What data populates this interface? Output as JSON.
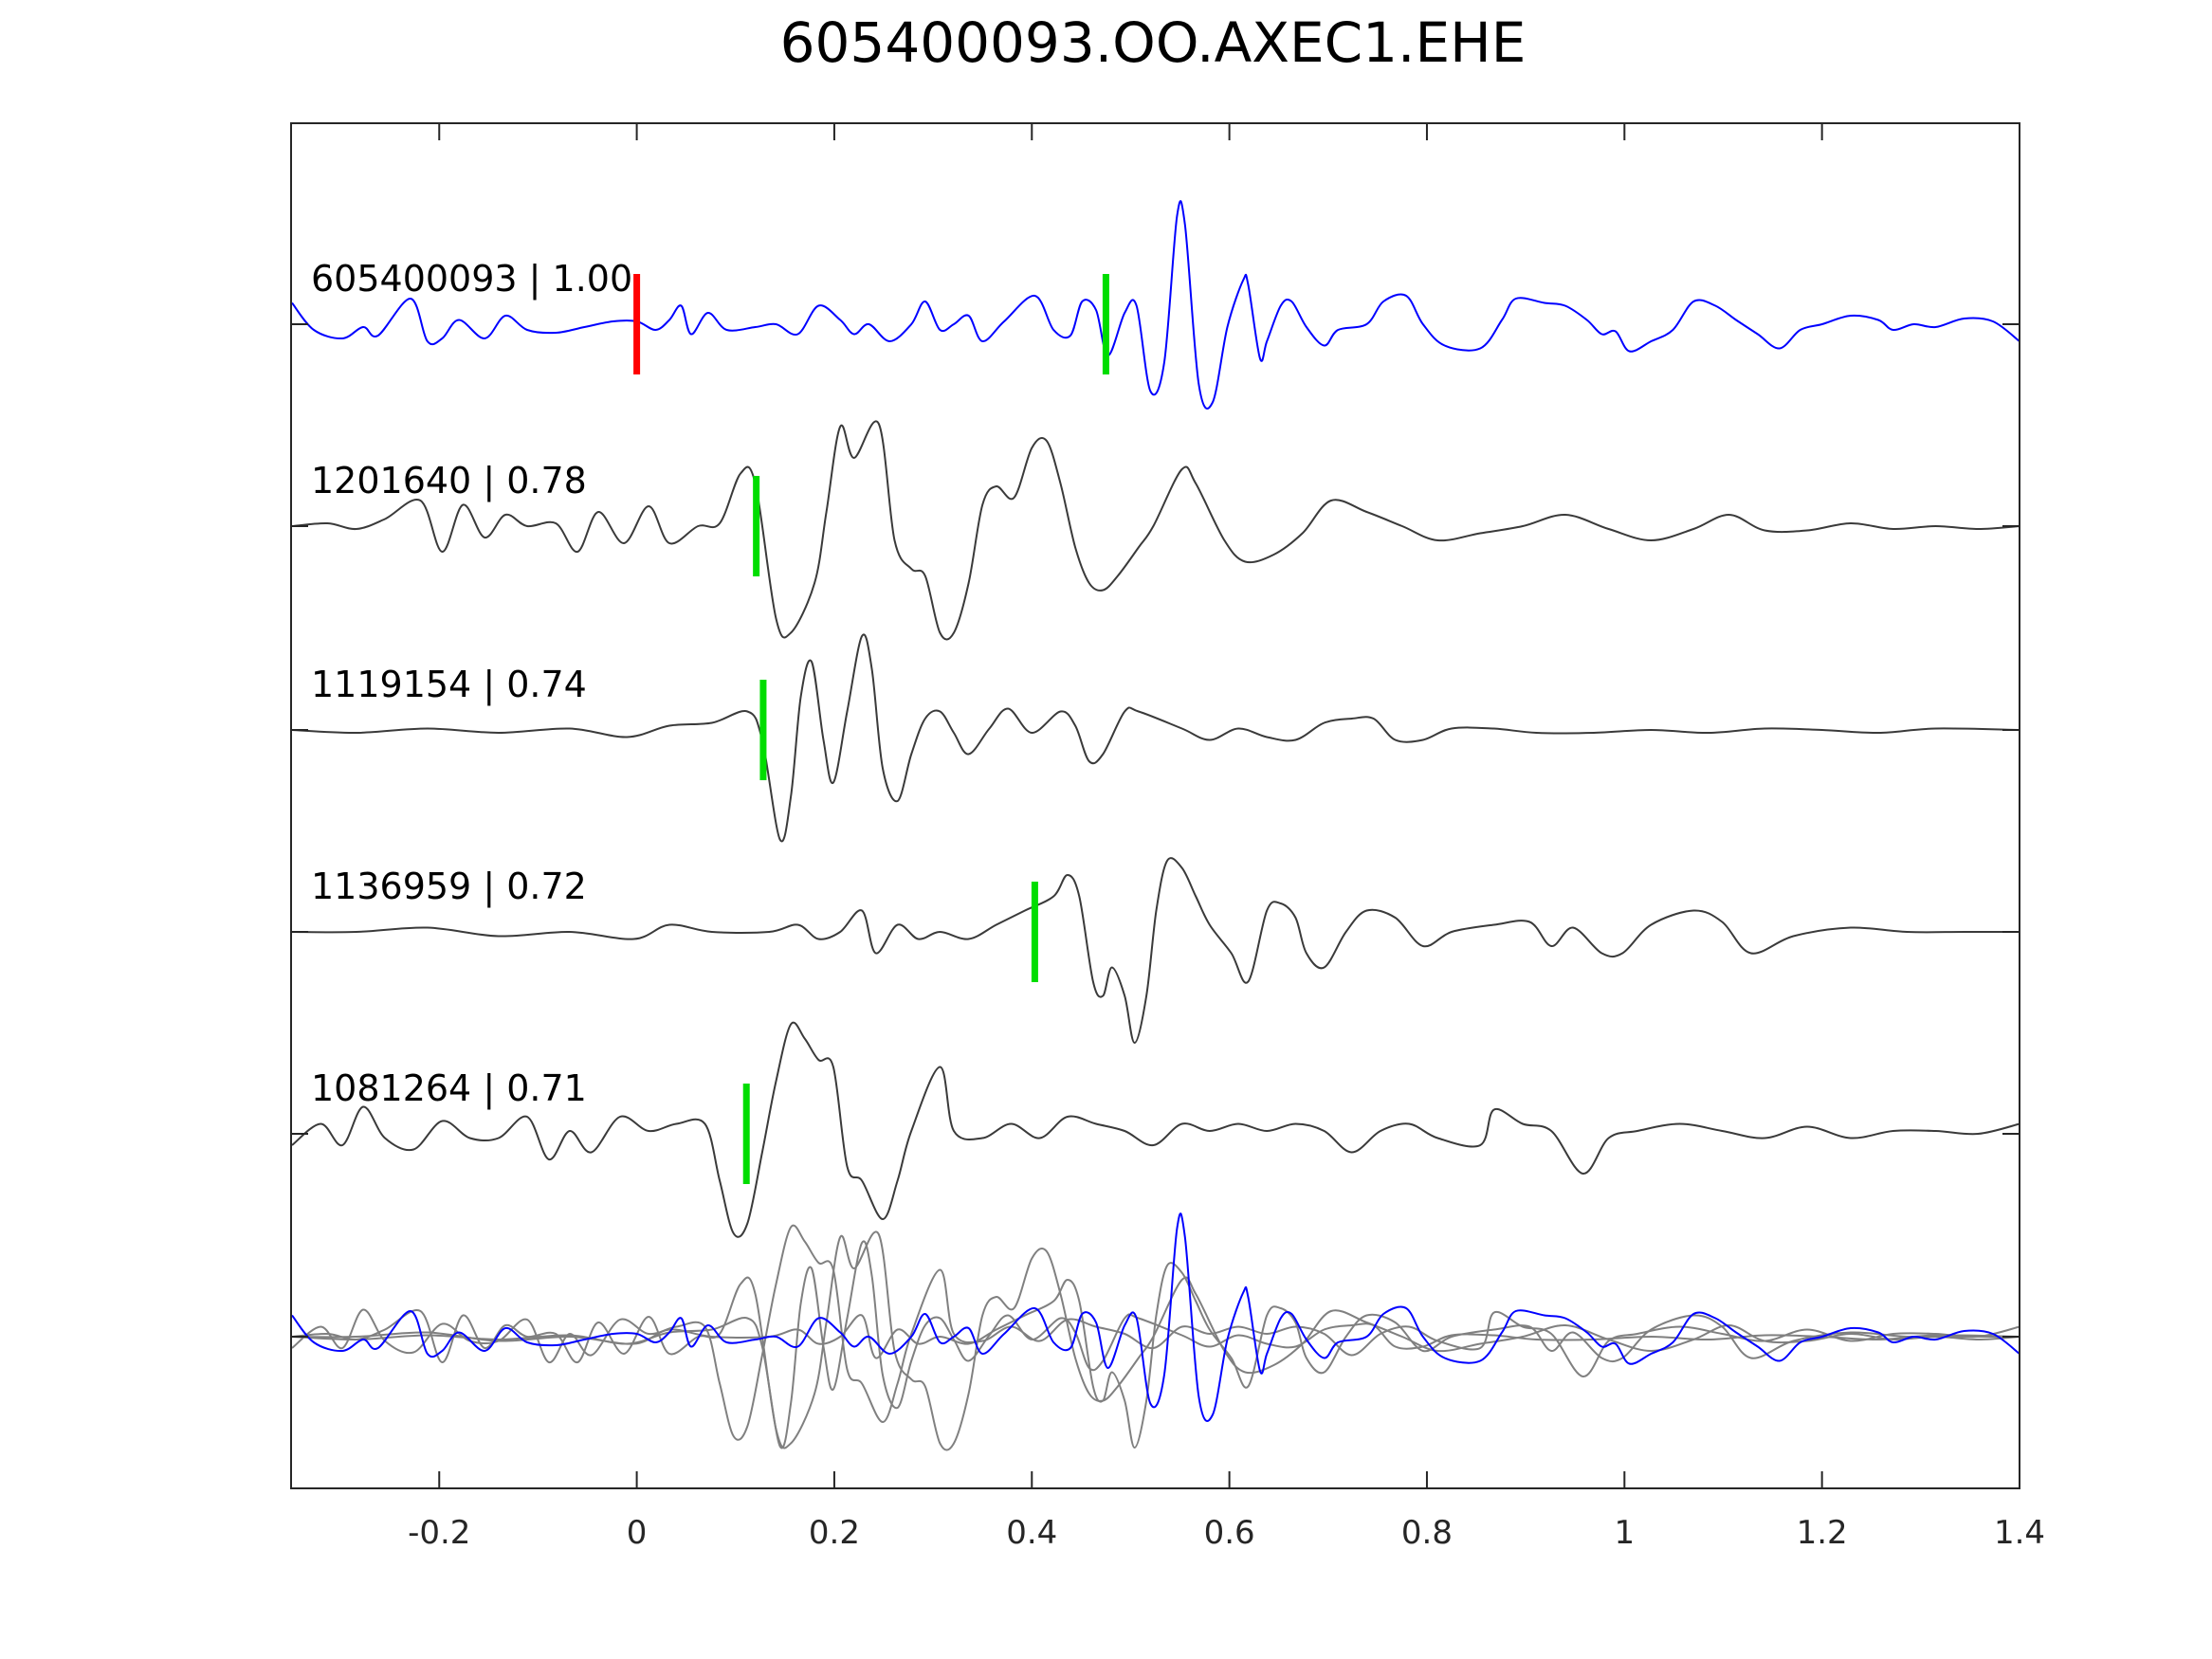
{
  "chart_data": {
    "type": "line",
    "title": "605400093.OO.AXEC1.EHE",
    "xlabel": "",
    "ylabel": "",
    "xlim": [
      -0.35,
      1.4
    ],
    "xticks": [
      -0.2,
      0,
      0.2,
      0.4,
      0.6,
      0.8,
      1,
      1.2,
      1.4
    ],
    "xtick_labels": [
      "-0.2",
      "0",
      "0.2",
      "0.4",
      "0.6",
      "0.8",
      "1",
      "1.2",
      "1.4"
    ],
    "amplitude_units": "arbitrary (142 units = trace spacing)",
    "colors": {
      "reference": "#0000ff",
      "other": "#3a3a3a",
      "stack": "#808080",
      "pick_red": "#ff0000",
      "pick_green": "#00dd00",
      "axes": "#262626"
    },
    "series": [
      {
        "name": "605400093 | 1.00",
        "color": "#0000ff",
        "pick_red": 0,
        "pick_green": 0.475,
        "t": [
          -0.349,
          -0.327,
          -0.298,
          -0.277,
          -0.262,
          -0.229,
          -0.212,
          -0.197,
          -0.18,
          -0.154,
          -0.133,
          -0.111,
          -0.082,
          -0.053,
          -0.024,
          0,
          0.019,
          0.033,
          0.045,
          0.055,
          0.072,
          0.091,
          0.12,
          0.141,
          0.163,
          0.184,
          0.206,
          0.22,
          0.235,
          0.256,
          0.278,
          0.292,
          0.307,
          0.321,
          0.336,
          0.35,
          0.372,
          0.403,
          0.422,
          0.439,
          0.451,
          0.465,
          0.477,
          0.494,
          0.506,
          0.52,
          0.534,
          0.547,
          0.555,
          0.569,
          0.583,
          0.598,
          0.614,
          0.619,
          0.631,
          0.638,
          0.652,
          0.663,
          0.678,
          0.696,
          0.71,
          0.739,
          0.756,
          0.779,
          0.796,
          0.818,
          0.854,
          0.876,
          0.89,
          0.919,
          0.94,
          0.962,
          0.977,
          0.991,
          1.005,
          1.027,
          1.049,
          1.07,
          1.092,
          1.113,
          1.135,
          1.157,
          1.178,
          1.2,
          1.229,
          1.257,
          1.272,
          1.293,
          1.315,
          1.344,
          1.373,
          1.4
        ],
        "a": [
          15,
          -4,
          -10,
          -2,
          -8,
          18,
          -12,
          -10,
          3,
          -10,
          6,
          -4,
          -6,
          -2,
          2,
          2,
          -4,
          3,
          13,
          -7,
          8,
          -4,
          -2,
          0,
          -7,
          13,
          3,
          -7,
          0,
          -12,
          0,
          16,
          -4,
          0,
          6,
          -12,
          2,
          20,
          -4,
          -8,
          16,
          10,
          -22,
          8,
          13,
          -47,
          -27,
          76,
          70,
          -42,
          -55,
          -2,
          31,
          28,
          -24,
          -12,
          13,
          16,
          -2,
          -15,
          -4,
          0,
          16,
          20,
          0,
          -15,
          -17,
          3,
          18,
          15,
          13,
          3,
          -7,
          -5,
          -19,
          -12,
          -4,
          16,
          13,
          3,
          -7,
          -17,
          -4,
          0,
          6,
          3,
          -4,
          0,
          -2,
          4,
          2,
          -12
        ]
      },
      {
        "name": "1201640 | 0.78",
        "color": "#3a3a3a",
        "pick_green": 0.121,
        "t": [
          -0.349,
          -0.313,
          -0.284,
          -0.255,
          -0.219,
          -0.197,
          -0.176,
          -0.154,
          -0.133,
          -0.111,
          -0.082,
          -0.06,
          -0.039,
          -0.013,
          0.012,
          0.033,
          0.062,
          0.084,
          0.105,
          0.12,
          0.141,
          0.156,
          0.18,
          0.192,
          0.206,
          0.22,
          0.245,
          0.261,
          0.278,
          0.292,
          0.307,
          0.321,
          0.336,
          0.35,
          0.364,
          0.382,
          0.4,
          0.415,
          0.429,
          0.444,
          0.458,
          0.472,
          0.487,
          0.508,
          0.523,
          0.552,
          0.566,
          0.595,
          0.616,
          0.645,
          0.674,
          0.703,
          0.739,
          0.775,
          0.811,
          0.854,
          0.897,
          0.94,
          0.984,
          1.027,
          1.07,
          1.106,
          1.142,
          1.185,
          1.229,
          1.272,
          1.315,
          1.358,
          1.4
        ],
        "a": [
          0,
          2,
          -2,
          5,
          18,
          -18,
          15,
          -8,
          8,
          0,
          2,
          -18,
          10,
          -12,
          14,
          -12,
          0,
          2,
          37,
          30,
          -65,
          -75,
          -40,
          10,
          70,
          48,
          72,
          -10,
          -30,
          -35,
          -75,
          -75,
          -40,
          15,
          28,
          20,
          55,
          60,
          30,
          -15,
          -40,
          -45,
          -35,
          -15,
          0,
          40,
          30,
          -10,
          -25,
          -20,
          -5,
          18,
          10,
          0,
          -10,
          -5,
          0,
          8,
          -2,
          -10,
          -2,
          8,
          -3,
          -3,
          2,
          -2,
          0,
          -2,
          0
        ]
      },
      {
        "name": "1119154 | 0.74",
        "color": "#3a3a3a",
        "pick_green": 0.128,
        "t": [
          -0.349,
          -0.284,
          -0.212,
          -0.14,
          -0.068,
          -0.01,
          0.033,
          0.076,
          0.112,
          0.127,
          0.145,
          0.156,
          0.166,
          0.177,
          0.189,
          0.199,
          0.213,
          0.228,
          0.238,
          0.249,
          0.264,
          0.278,
          0.292,
          0.307,
          0.321,
          0.336,
          0.357,
          0.376,
          0.4,
          0.429,
          0.444,
          0.458,
          0.472,
          0.494,
          0.508,
          0.552,
          0.58,
          0.609,
          0.638,
          0.667,
          0.696,
          0.724,
          0.746,
          0.768,
          0.796,
          0.825,
          0.868,
          0.911,
          0.969,
          1.027,
          1.085,
          1.142,
          1.2,
          1.257,
          1.315,
          1.4
        ],
        "a": [
          0,
          -2,
          1,
          -2,
          1,
          -5,
          3,
          5,
          13,
          -7,
          -77,
          -47,
          23,
          48,
          -7,
          -37,
          13,
          66,
          43,
          -27,
          -50,
          -17,
          8,
          13,
          -2,
          -17,
          1,
          15,
          -2,
          13,
          3,
          -22,
          -17,
          13,
          13,
          1,
          -7,
          1,
          -5,
          -7,
          5,
          8,
          8,
          -7,
          -7,
          1,
          1,
          -2,
          -2,
          0,
          -2,
          1,
          0,
          -2,
          1,
          0
        ]
      },
      {
        "name": "1136959 | 0.72",
        "color": "#3a3a3a",
        "pick_green": 0.403,
        "t": [
          -0.349,
          -0.284,
          -0.212,
          -0.14,
          -0.068,
          -0.003,
          0.033,
          0.076,
          0.134,
          0.163,
          0.184,
          0.206,
          0.228,
          0.242,
          0.264,
          0.285,
          0.307,
          0.336,
          0.364,
          0.393,
          0.422,
          0.436,
          0.448,
          0.462,
          0.472,
          0.481,
          0.494,
          0.504,
          0.516,
          0.526,
          0.537,
          0.552,
          0.566,
          0.58,
          0.602,
          0.619,
          0.638,
          0.652,
          0.667,
          0.678,
          0.696,
          0.718,
          0.739,
          0.768,
          0.796,
          0.825,
          0.868,
          0.904,
          0.926,
          0.948,
          0.977,
          0.998,
          1.027,
          1.07,
          1.099,
          1.128,
          1.171,
          1.229,
          1.286,
          1.344,
          1.4
        ],
        "a": [
          0,
          0,
          3,
          -3,
          0,
          -5,
          5,
          0,
          0,
          5,
          -5,
          0,
          15,
          -15,
          5,
          -5,
          0,
          -5,
          5,
          15,
          25,
          40,
          25,
          -35,
          -45,
          -25,
          -45,
          -78,
          -45,
          15,
          50,
          45,
          25,
          5,
          -15,
          -35,
          15,
          20,
          10,
          -15,
          -25,
          0,
          15,
          10,
          -10,
          0,
          5,
          7,
          -10,
          3,
          -15,
          -15,
          5,
          15,
          7,
          -15,
          -3,
          3,
          0,
          0,
          0
        ]
      },
      {
        "name": "1081264 | 0.71",
        "color": "#3a3a3a",
        "pick_green": 0.111,
        "t": [
          -0.349,
          -0.32,
          -0.298,
          -0.277,
          -0.255,
          -0.226,
          -0.197,
          -0.169,
          -0.14,
          -0.111,
          -0.089,
          -0.068,
          -0.046,
          -0.017,
          0.012,
          0.04,
          0.069,
          0.084,
          0.098,
          0.112,
          0.127,
          0.141,
          0.156,
          0.17,
          0.184,
          0.199,
          0.213,
          0.228,
          0.249,
          0.264,
          0.278,
          0.307,
          0.321,
          0.35,
          0.379,
          0.408,
          0.436,
          0.465,
          0.494,
          0.523,
          0.552,
          0.58,
          0.609,
          0.638,
          0.667,
          0.696,
          0.724,
          0.753,
          0.782,
          0.811,
          0.854,
          0.868,
          0.897,
          0.926,
          0.958,
          0.984,
          1.013,
          1.056,
          1.099,
          1.142,
          1.185,
          1.229,
          1.272,
          1.315,
          1.358,
          1.4
        ],
        "a": [
          -8,
          7,
          -8,
          19,
          -3,
          -11,
          9,
          -3,
          -3,
          12,
          -18,
          2,
          -13,
          12,
          2,
          7,
          7,
          -33,
          -70,
          -63,
          -13,
          37,
          77,
          67,
          52,
          47,
          -23,
          -33,
          -60,
          -33,
          2,
          47,
          2,
          -3,
          7,
          -3,
          12,
          7,
          2,
          -8,
          7,
          2,
          7,
          2,
          7,
          2,
          -13,
          2,
          7,
          -3,
          -8,
          17,
          7,
          2,
          -28,
          -3,
          2,
          7,
          2,
          -3,
          5,
          -3,
          2,
          2,
          0,
          7
        ]
      }
    ],
    "stack": {
      "description_order": "all series overlaid on one baseline",
      "reference_color": "#0000ff",
      "other_color": "#808080"
    }
  }
}
